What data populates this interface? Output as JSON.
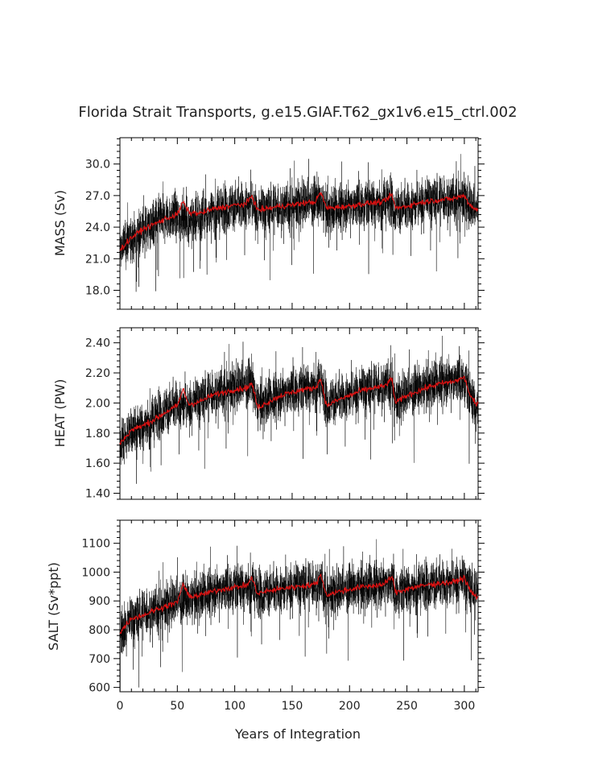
{
  "title": "Florida Strait Transports, g.e15.GIAF.T62_gx1v6.e15_ctrl.002",
  "xlabel": "Years of Integration",
  "colors": {
    "raw": "#000000",
    "smoothed": "#dd1111",
    "frame": "#000000",
    "background": "#ffffff"
  },
  "chart_data": [
    {
      "type": "line",
      "name": "mass",
      "ylabel": "MASS (Sv)",
      "xlim": [
        0,
        312
      ],
      "ylim": [
        16.2,
        32.5
      ],
      "xticks": [
        0,
        50,
        100,
        150,
        200,
        250,
        300
      ],
      "yticks": [
        18.0,
        21.0,
        24.0,
        27.0,
        30.0
      ],
      "ytick_labels": [
        "18.0",
        "21.0",
        "24.0",
        "27.0",
        "30.0"
      ],
      "series": [
        {
          "role": "raw",
          "x": [
            0,
            10,
            20,
            30,
            40,
            50,
            60,
            70,
            80,
            90,
            100,
            110,
            115,
            120,
            130,
            140,
            150,
            160,
            170,
            175,
            180,
            190,
            200,
            210,
            220,
            230,
            237,
            240,
            250,
            260,
            270,
            280,
            290,
            300,
            305,
            310
          ],
          "y": [
            22.0,
            23.0,
            23.8,
            24.3,
            24.8,
            25.0,
            24.6,
            25.0,
            25.4,
            25.7,
            26.0,
            26.2,
            26.3,
            25.4,
            25.7,
            25.9,
            26.1,
            26.3,
            26.4,
            26.5,
            25.5,
            25.8,
            26.0,
            26.2,
            26.3,
            26.4,
            26.5,
            25.6,
            26.0,
            26.3,
            26.5,
            26.6,
            26.7,
            26.8,
            26.0,
            25.6
          ]
        },
        {
          "role": "smoothed",
          "x": [
            0,
            10,
            20,
            30,
            40,
            50,
            55,
            60,
            70,
            80,
            90,
            100,
            110,
            115,
            120,
            130,
            140,
            150,
            160,
            170,
            175,
            180,
            190,
            200,
            210,
            220,
            230,
            237,
            240,
            250,
            260,
            270,
            280,
            290,
            300,
            305,
            310
          ],
          "y": [
            21.8,
            23.0,
            23.8,
            24.3,
            24.8,
            25.2,
            26.4,
            25.4,
            25.3,
            25.7,
            25.9,
            26.1,
            26.2,
            27.0,
            25.6,
            25.8,
            26.0,
            26.1,
            26.3,
            26.4,
            27.3,
            25.8,
            25.9,
            26.0,
            26.2,
            26.3,
            26.4,
            27.1,
            25.8,
            26.0,
            26.3,
            26.5,
            26.6,
            26.7,
            27.0,
            26.1,
            25.7
          ]
        }
      ]
    },
    {
      "type": "line",
      "name": "heat",
      "ylabel": "HEAT (PW)",
      "xlim": [
        0,
        312
      ],
      "ylim": [
        1.36,
        2.5
      ],
      "xticks": [
        0,
        50,
        100,
        150,
        200,
        250,
        300
      ],
      "yticks": [
        1.4,
        1.6,
        1.8,
        2.0,
        2.2,
        2.4
      ],
      "ytick_labels": [
        "1.40",
        "1.60",
        "1.80",
        "2.00",
        "2.20",
        "2.40"
      ],
      "series": [
        {
          "role": "raw",
          "x": [
            0,
            10,
            20,
            30,
            40,
            50,
            60,
            70,
            80,
            90,
            100,
            110,
            115,
            120,
            130,
            140,
            150,
            160,
            170,
            175,
            180,
            190,
            200,
            210,
            220,
            230,
            237,
            240,
            250,
            260,
            270,
            280,
            290,
            300,
            305,
            310
          ],
          "y": [
            1.74,
            1.8,
            1.85,
            1.9,
            1.95,
            2.0,
            1.98,
            2.02,
            2.06,
            2.09,
            2.11,
            2.12,
            2.13,
            1.99,
            2.02,
            2.05,
            2.08,
            2.1,
            2.12,
            2.13,
            2.0,
            2.03,
            2.06,
            2.08,
            2.1,
            2.12,
            2.14,
            2.02,
            2.06,
            2.09,
            2.12,
            2.14,
            2.15,
            2.16,
            2.05,
            1.98
          ]
        },
        {
          "role": "smoothed",
          "x": [
            0,
            10,
            20,
            30,
            40,
            50,
            55,
            60,
            70,
            80,
            90,
            100,
            110,
            115,
            120,
            130,
            140,
            150,
            160,
            170,
            175,
            180,
            190,
            200,
            210,
            220,
            230,
            237,
            240,
            250,
            260,
            270,
            280,
            290,
            300,
            305,
            310
          ],
          "y": [
            1.73,
            1.82,
            1.85,
            1.89,
            1.94,
            1.98,
            2.09,
            1.99,
            2.01,
            2.05,
            2.07,
            2.09,
            2.1,
            2.13,
            1.97,
            2.01,
            2.05,
            2.07,
            2.09,
            2.1,
            2.16,
            1.98,
            2.02,
            2.05,
            2.08,
            2.1,
            2.11,
            2.16,
            2.0,
            2.05,
            2.08,
            2.11,
            2.13,
            2.14,
            2.17,
            2.05,
            1.99
          ]
        }
      ]
    },
    {
      "type": "line",
      "name": "salt",
      "ylabel": "SALT (Sv*ppt)",
      "xlim": [
        0,
        312
      ],
      "ylim": [
        585,
        1180
      ],
      "xticks": [
        0,
        50,
        100,
        150,
        200,
        250,
        300
      ],
      "xtick_labels": [
        "0",
        "50",
        "100",
        "150",
        "200",
        "250",
        "300"
      ],
      "yticks": [
        600,
        700,
        800,
        900,
        1000,
        1100
      ],
      "ytick_labels": [
        "600",
        "700",
        "800",
        "900",
        "1000",
        "1100"
      ],
      "series": [
        {
          "role": "raw",
          "x": [
            0,
            10,
            20,
            30,
            40,
            50,
            60,
            70,
            80,
            90,
            100,
            110,
            115,
            120,
            130,
            140,
            150,
            160,
            170,
            175,
            180,
            190,
            200,
            210,
            220,
            230,
            237,
            240,
            250,
            260,
            270,
            280,
            290,
            300,
            305,
            310
          ],
          "y": [
            800,
            830,
            855,
            870,
            885,
            900,
            905,
            918,
            930,
            940,
            948,
            952,
            955,
            925,
            935,
            942,
            948,
            953,
            957,
            960,
            925,
            935,
            942,
            948,
            953,
            957,
            962,
            930,
            942,
            950,
            957,
            962,
            965,
            968,
            945,
            925
          ]
        },
        {
          "role": "smoothed",
          "x": [
            0,
            10,
            20,
            30,
            40,
            50,
            55,
            60,
            70,
            80,
            90,
            100,
            110,
            115,
            120,
            130,
            140,
            150,
            160,
            170,
            175,
            180,
            190,
            200,
            210,
            220,
            230,
            237,
            240,
            250,
            260,
            270,
            280,
            290,
            300,
            305,
            310
          ],
          "y": [
            790,
            840,
            850,
            868,
            882,
            895,
            960,
            915,
            920,
            932,
            942,
            948,
            953,
            980,
            925,
            935,
            942,
            948,
            953,
            957,
            990,
            920,
            932,
            940,
            948,
            953,
            957,
            985,
            930,
            942,
            950,
            957,
            962,
            965,
            980,
            935,
            915
          ]
        }
      ]
    }
  ]
}
